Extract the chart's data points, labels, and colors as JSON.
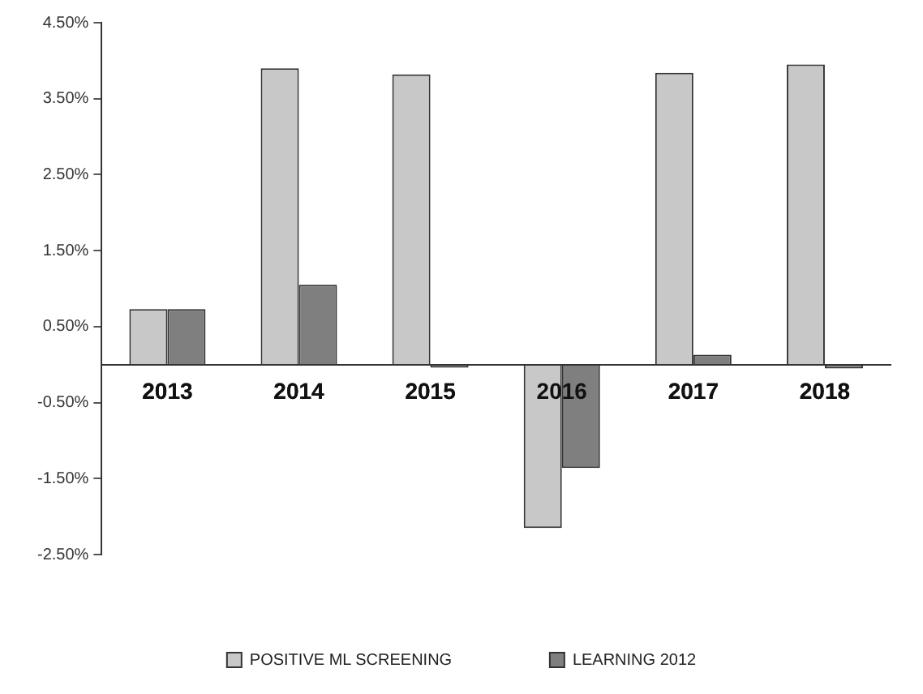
{
  "chart_data": {
    "type": "bar",
    "categories": [
      "2013",
      "2014",
      "2015",
      "2016",
      "2017",
      "2018"
    ],
    "series": [
      {
        "name": "POSITIVE ML SCREENING",
        "color": "#c8c8c8",
        "values": [
          0.73,
          3.9,
          3.82,
          -2.15,
          3.84,
          3.95
        ]
      },
      {
        "name": "LEARNING 2012",
        "color": "#7f7f7f",
        "values": [
          0.73,
          1.05,
          -0.04,
          -1.36,
          0.13,
          -0.05
        ]
      }
    ],
    "ylim": [
      -2.5,
      4.5
    ],
    "yticks": [
      {
        "value": 4.5,
        "label": "4.50%"
      },
      {
        "value": 3.5,
        "label": "3.50%"
      },
      {
        "value": 2.5,
        "label": "2.50%"
      },
      {
        "value": 1.5,
        "label": "1.50%"
      },
      {
        "value": 0.5,
        "label": "0.50%"
      },
      {
        "value": -0.5,
        "label": "-0.50%"
      },
      {
        "value": -1.5,
        "label": "-1.50%"
      },
      {
        "value": -2.5,
        "label": "-2.50%"
      }
    ],
    "grid": false,
    "legend": "bottom"
  }
}
